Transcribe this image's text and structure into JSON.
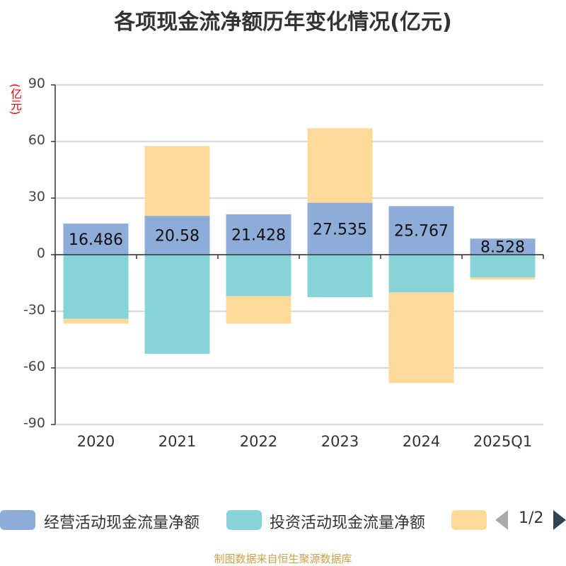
{
  "chart_data": {
    "type": "bar",
    "stacked": true,
    "title": "各项现金流净额历年变化情况(亿元)",
    "ylabel": "(亿元)",
    "ylim": [
      -90,
      90
    ],
    "yticks": [
      "90",
      "60",
      "30",
      "0",
      "-30",
      "-60",
      "-90"
    ],
    "categories": [
      "2020",
      "2021",
      "2022",
      "2023",
      "2024",
      "2025Q1"
    ],
    "series": [
      {
        "name": "经营活动现金流量净额",
        "color": "#8eacd8",
        "values": [
          16.486,
          20.58,
          21.428,
          27.535,
          25.767,
          8.528
        ],
        "labels": [
          "16.486",
          "20.58",
          "21.428",
          "27.535",
          "25.767",
          "8.528"
        ]
      },
      {
        "name": "投资活动现金流量净额",
        "color": "#86d4d8",
        "values": [
          -34,
          -52.5,
          -22,
          -22.5,
          -20,
          -12
        ]
      },
      {
        "name": "",
        "color": "#ffd999",
        "values": [
          -2.5,
          37,
          -14.5,
          39.5,
          -48,
          -1.2
        ]
      }
    ],
    "grid": true,
    "legend_position": "bottom"
  },
  "legend": {
    "items": [
      "经营活动现金流量净额",
      "投资活动现金流量净额",
      ""
    ],
    "page": "1/2"
  },
  "footer": "制图数据来自恒生聚源数据库"
}
